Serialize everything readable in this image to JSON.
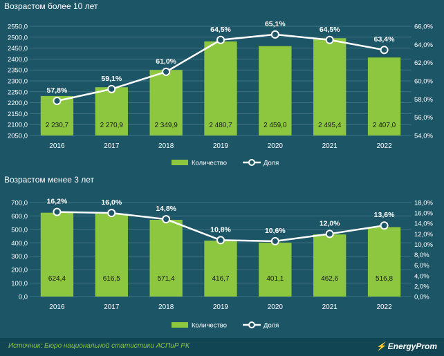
{
  "chart_data": [
    {
      "type": "bar",
      "title": "Возрастом более 10 лет",
      "categories": [
        "2016",
        "2017",
        "2018",
        "2019",
        "2020",
        "2021",
        "2022"
      ],
      "series": [
        {
          "name": "Количество",
          "type": "bar",
          "axis": "left",
          "values": [
            2230.7,
            2270.9,
            2349.9,
            2480.7,
            2459.0,
            2495.4,
            2407.0
          ],
          "labels": [
            "2 230,7",
            "2 270,9",
            "2 349,9",
            "2 480,7",
            "2 459,0",
            "2 495,4",
            "2 407,0"
          ]
        },
        {
          "name": "Доля",
          "type": "line",
          "axis": "right",
          "values": [
            57.8,
            59.1,
            61.0,
            64.5,
            65.1,
            64.5,
            63.4
          ],
          "labels": [
            "57,8%",
            "59,1%",
            "61,0%",
            "64,5%",
            "65,1%",
            "64,5%",
            "63,4%"
          ]
        }
      ],
      "ylim": [
        2050,
        2550
      ],
      "y_ticks": [
        "2050,0",
        "2100,0",
        "2150,0",
        "2200,0",
        "2250,0",
        "2300,0",
        "2350,0",
        "2400,0",
        "2450,0",
        "2500,0",
        "2550,0"
      ],
      "y2lim": [
        54,
        66
      ],
      "y2_ticks": [
        "54,0%",
        "56,0%",
        "58,0%",
        "60,0%",
        "62,0%",
        "64,0%",
        "66,0%"
      ],
      "grid": true,
      "legend": "bottom-center"
    },
    {
      "type": "bar",
      "title": "Возрастом менее 3 лет",
      "categories": [
        "2016",
        "2017",
        "2018",
        "2019",
        "2020",
        "2021",
        "2022"
      ],
      "series": [
        {
          "name": "Количество",
          "type": "bar",
          "axis": "left",
          "values": [
            624.4,
            616.5,
            571.4,
            416.7,
            401.1,
            462.6,
            516.8
          ],
          "labels": [
            "624,4",
            "616,5",
            "571,4",
            "416,7",
            "401,1",
            "462,6",
            "516,8"
          ]
        },
        {
          "name": "Доля",
          "type": "line",
          "axis": "right",
          "values": [
            16.2,
            16.0,
            14.8,
            10.8,
            10.6,
            12.0,
            13.6
          ],
          "labels": [
            "16,2%",
            "16,0%",
            "14,8%",
            "10,8%",
            "10,6%",
            "12,0%",
            "13,6%"
          ]
        }
      ],
      "ylim": [
        0,
        700
      ],
      "y_ticks": [
        "0,0",
        "100,0",
        "200,0",
        "300,0",
        "400,0",
        "500,0",
        "600,0",
        "700,0"
      ],
      "y2lim": [
        0,
        18
      ],
      "y2_ticks": [
        "0,0%",
        "2,0%",
        "4,0%",
        "6,0%",
        "8,0%",
        "10,0%",
        "12,0%",
        "14,0%",
        "16,0%",
        "18,0%"
      ],
      "grid": true,
      "legend": "bottom-center"
    }
  ],
  "colors": {
    "background": "#1c5566",
    "bar": "#8dc63f",
    "line": "#ffffff",
    "grid": "#3f7584",
    "source_bar": "#124553",
    "source_text": "#8dc63f"
  },
  "footer": {
    "source": "Источник: Бюро национальной статистики АСПиР РК",
    "brand": "EnergyProm"
  }
}
